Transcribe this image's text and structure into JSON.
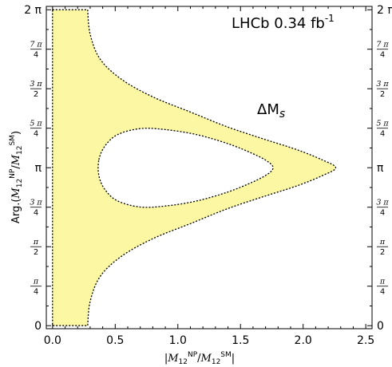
{
  "chart_data": {
    "type": "area",
    "title": "",
    "xlabel": "|M12NP/M12SM|",
    "ylabel": "Arg.(M12NP/M12SM)",
    "xlim": [
      -0.05,
      2.55
    ],
    "ylim": [
      -0.06,
      6.35
    ],
    "grid": false,
    "fill_color": "#fbf7a3",
    "boundary_style": "dotted",
    "x_ticks": [
      {
        "value": 0.0,
        "label": "0.0"
      },
      {
        "value": 0.5,
        "label": "0.5"
      },
      {
        "value": 1.0,
        "label": "1.0"
      },
      {
        "value": 1.5,
        "label": "1.5"
      },
      {
        "value": 2.0,
        "label": "2.0"
      },
      {
        "value": 2.5,
        "label": "2.5"
      }
    ],
    "y_ticks": [
      {
        "value": 0.0,
        "label": "0"
      },
      {
        "value": 0.7854,
        "num": "π",
        "den": "4"
      },
      {
        "value": 1.5708,
        "num": "π",
        "den": "2"
      },
      {
        "value": 2.3562,
        "num": "3 π",
        "den": "4"
      },
      {
        "value": 3.1416,
        "label": "π"
      },
      {
        "value": 3.927,
        "num": "5 π",
        "den": "4"
      },
      {
        "value": 4.7124,
        "num": "3 π",
        "den": "2"
      },
      {
        "value": 5.4978,
        "num": "7 π",
        "den": "4"
      },
      {
        "value": 6.2832,
        "label": "2 π"
      }
    ],
    "annotations": {
      "experiment": "LHCb 0.34 fb",
      "experiment_sup": "-1",
      "region_label": "ΔM",
      "region_sub": "s"
    },
    "outer_boundary": [
      [
        0.0,
        6.283
      ],
      [
        0.28,
        6.283
      ],
      [
        0.3,
        5.8
      ],
      [
        0.38,
        5.3
      ],
      [
        0.55,
        4.9
      ],
      [
        0.8,
        4.55
      ],
      [
        1.1,
        4.25
      ],
      [
        1.4,
        3.95
      ],
      [
        1.7,
        3.7
      ],
      [
        1.95,
        3.5
      ],
      [
        2.15,
        3.3
      ],
      [
        2.26,
        3.1416
      ],
      [
        2.15,
        2.98
      ],
      [
        1.95,
        2.78
      ],
      [
        1.7,
        2.58
      ],
      [
        1.4,
        2.33
      ],
      [
        1.1,
        2.03
      ],
      [
        0.8,
        1.73
      ],
      [
        0.55,
        1.38
      ],
      [
        0.38,
        0.98
      ],
      [
        0.3,
        0.48
      ],
      [
        0.28,
        0.0
      ],
      [
        0.0,
        0.0
      ]
    ],
    "inner_boundary": [
      [
        0.37,
        3.3
      ],
      [
        0.42,
        3.58
      ],
      [
        0.52,
        3.8
      ],
      [
        0.7,
        3.92
      ],
      [
        0.9,
        3.9
      ],
      [
        1.15,
        3.8
      ],
      [
        1.4,
        3.62
      ],
      [
        1.6,
        3.42
      ],
      [
        1.72,
        3.26
      ],
      [
        1.76,
        3.1416
      ],
      [
        1.72,
        3.02
      ],
      [
        1.6,
        2.86
      ],
      [
        1.4,
        2.66
      ],
      [
        1.15,
        2.48
      ],
      [
        0.9,
        2.38
      ],
      [
        0.7,
        2.36
      ],
      [
        0.52,
        2.48
      ],
      [
        0.42,
        2.7
      ],
      [
        0.37,
        2.98
      ]
    ]
  }
}
